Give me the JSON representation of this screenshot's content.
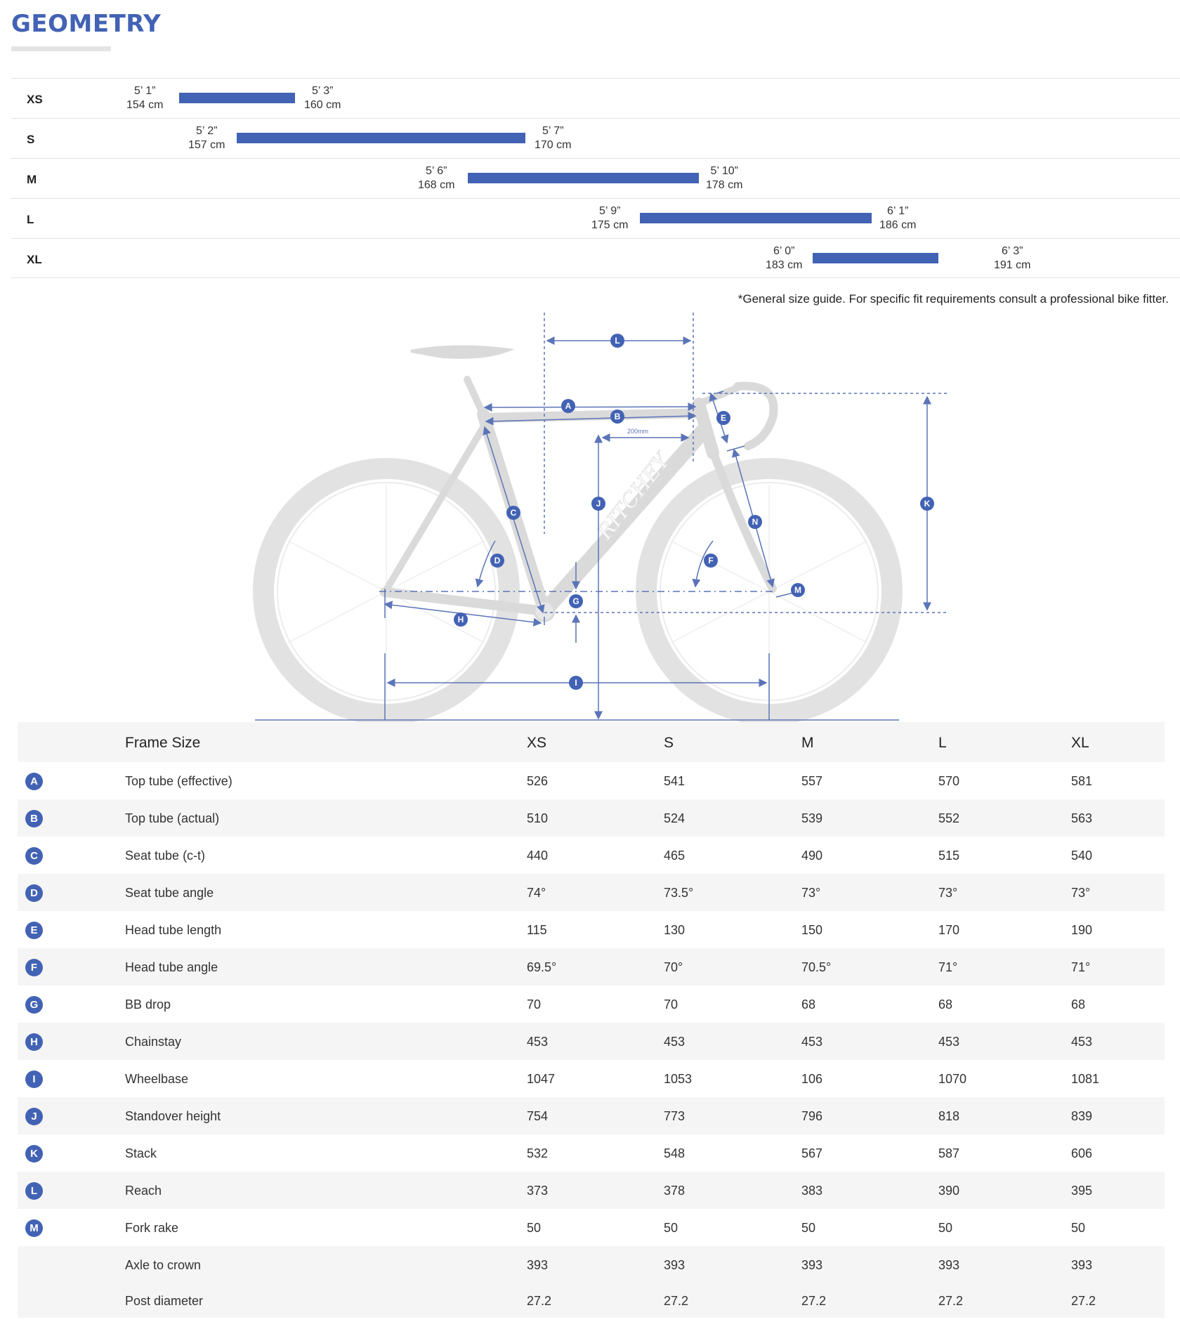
{
  "title": "GEOMETRY",
  "size_chart": {
    "rows": [
      {
        "size": "XS",
        "min_ft": "5’ 1”",
        "min_cm": "154 cm",
        "max_ft": "5’ 3”",
        "max_cm": "160 cm"
      },
      {
        "size": "S",
        "min_ft": "5’ 2”",
        "min_cm": "157 cm",
        "max_ft": "5’ 7”",
        "max_cm": "170 cm"
      },
      {
        "size": "M",
        "min_ft": "5’ 6”",
        "min_cm": "168 cm",
        "max_ft": "5’ 10”",
        "max_cm": "178 cm"
      },
      {
        "size": "L",
        "min_ft": "5’ 9”",
        "min_cm": "175 cm",
        "max_ft": "6’ 1”",
        "max_cm": "186 cm"
      },
      {
        "size": "XL",
        "min_ft": "6’ 0”",
        "min_cm": "183 cm",
        "max_ft": "6’ 3”",
        "max_cm": "191 cm"
      }
    ],
    "note": "*General size guide. For specific fit requirements consult a professional bike fitter."
  },
  "diagram": {
    "brand": "RITCHEY",
    "dim_200": "200mm",
    "labels": [
      "A",
      "B",
      "C",
      "D",
      "E",
      "F",
      "G",
      "H",
      "I",
      "J",
      "K",
      "L",
      "M",
      "N"
    ],
    "accent": "#4262b4",
    "bike_color": "#dadada"
  },
  "table": {
    "header": {
      "label": "Frame Size",
      "sizes": [
        "XS",
        "S",
        "M",
        "L",
        "XL"
      ]
    },
    "rows": [
      {
        "badge": "A",
        "label": "Top tube (effective)",
        "values": [
          "526",
          "541",
          "557",
          "570",
          "581"
        ]
      },
      {
        "badge": "B",
        "label": "Top tube (actual)",
        "values": [
          "510",
          "524",
          "539",
          "552",
          "563"
        ]
      },
      {
        "badge": "C",
        "label": "Seat tube (c-t)",
        "values": [
          "440",
          "465",
          "490",
          "515",
          "540"
        ]
      },
      {
        "badge": "D",
        "label": "Seat tube angle",
        "values": [
          "74°",
          "73.5°",
          "73°",
          "73°",
          "73°"
        ]
      },
      {
        "badge": "E",
        "label": "Head tube length",
        "values": [
          "115",
          "130",
          "150",
          "170",
          "190"
        ]
      },
      {
        "badge": "F",
        "label": "Head tube angle",
        "values": [
          "69.5°",
          "70°",
          "70.5°",
          "71°",
          "71°"
        ]
      },
      {
        "badge": "G",
        "label": "BB drop",
        "values": [
          "70",
          "70",
          "68",
          "68",
          "68"
        ]
      },
      {
        "badge": "H",
        "label": "Chainstay",
        "values": [
          "453",
          "453",
          "453",
          "453",
          "453"
        ]
      },
      {
        "badge": "I",
        "label": "Wheelbase",
        "values": [
          "1047",
          "1053",
          "106",
          "1070",
          "1081"
        ]
      },
      {
        "badge": "J",
        "label": "Standover height",
        "values": [
          "754",
          "773",
          "796",
          "818",
          "839"
        ]
      },
      {
        "badge": "K",
        "label": "Stack",
        "values": [
          "532",
          "548",
          "567",
          "587",
          "606"
        ]
      },
      {
        "badge": "L",
        "label": "Reach",
        "values": [
          "373",
          "378",
          "383",
          "390",
          "395"
        ]
      },
      {
        "badge": "M",
        "label": "Fork rake",
        "values": [
          "50",
          "50",
          "50",
          "50",
          "50"
        ]
      },
      {
        "badge": "",
        "label": "Axle to crown",
        "values": [
          "393",
          "393",
          "393",
          "393",
          "393"
        ]
      },
      {
        "badge": "",
        "label": "Post diameter",
        "values": [
          "27.2",
          "27.2",
          "27.2",
          "27.2",
          "27.2"
        ]
      }
    ]
  }
}
